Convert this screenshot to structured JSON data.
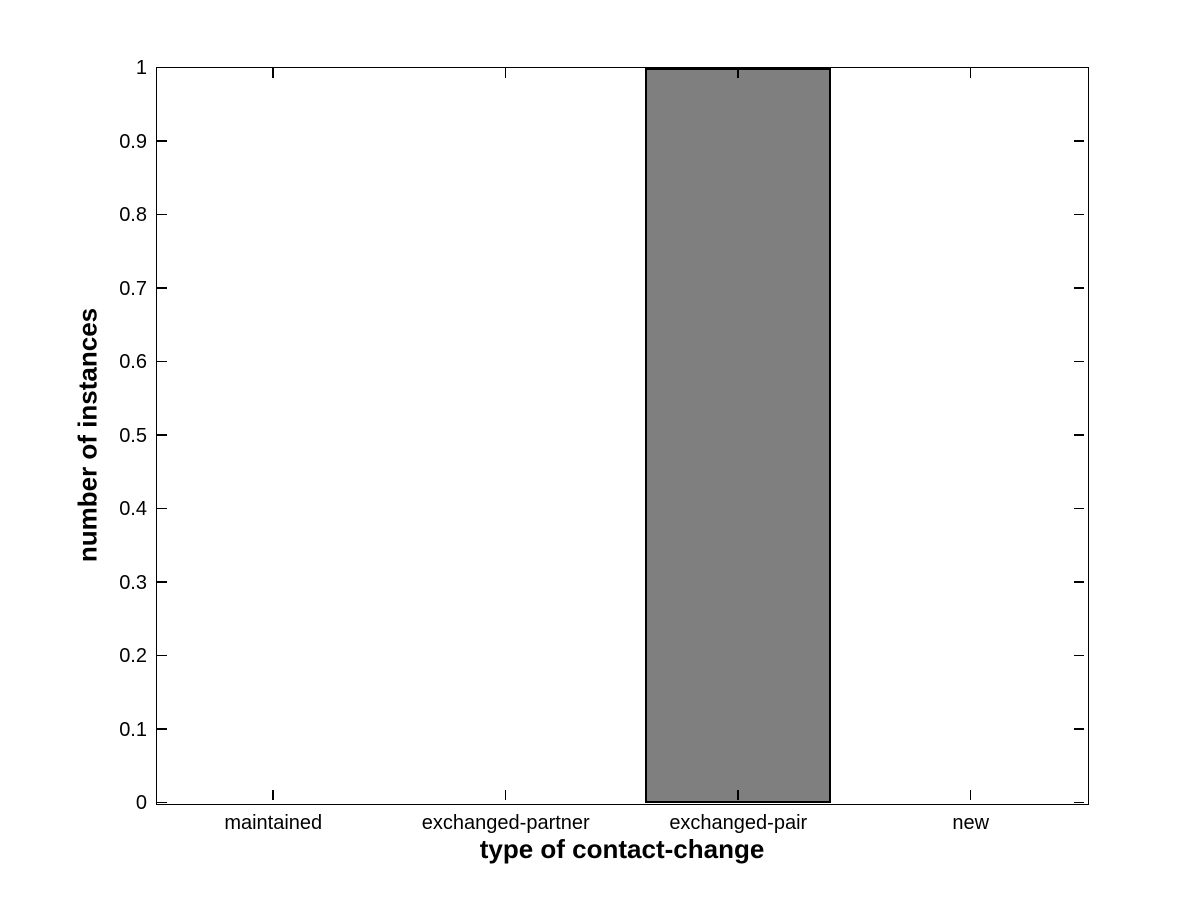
{
  "chart_data": {
    "type": "bar",
    "title": "",
    "xlabel": "type of contact-change",
    "ylabel": "number of instances",
    "categories": [
      "maintained",
      "exchanged-partner",
      "exchanged-pair",
      "new"
    ],
    "values": [
      0,
      0,
      1,
      0
    ],
    "ylim": [
      0,
      1
    ],
    "yticks": [
      0,
      0.1,
      0.2,
      0.3,
      0.4,
      0.5,
      0.6,
      0.7,
      0.8,
      0.9,
      1
    ],
    "ytick_labels": [
      "0",
      "0.1",
      "0.2",
      "0.3",
      "0.4",
      "0.5",
      "0.6",
      "0.7",
      "0.8",
      "0.9",
      "1"
    ],
    "bar_width_fraction": 0.8,
    "bar_color": "#7f7f7f",
    "bar_edge_color": "#000000",
    "axis_color": "#000000",
    "background_color": "#ffffff",
    "grid": false,
    "legend": null,
    "box": true,
    "tick_direction": "in"
  }
}
